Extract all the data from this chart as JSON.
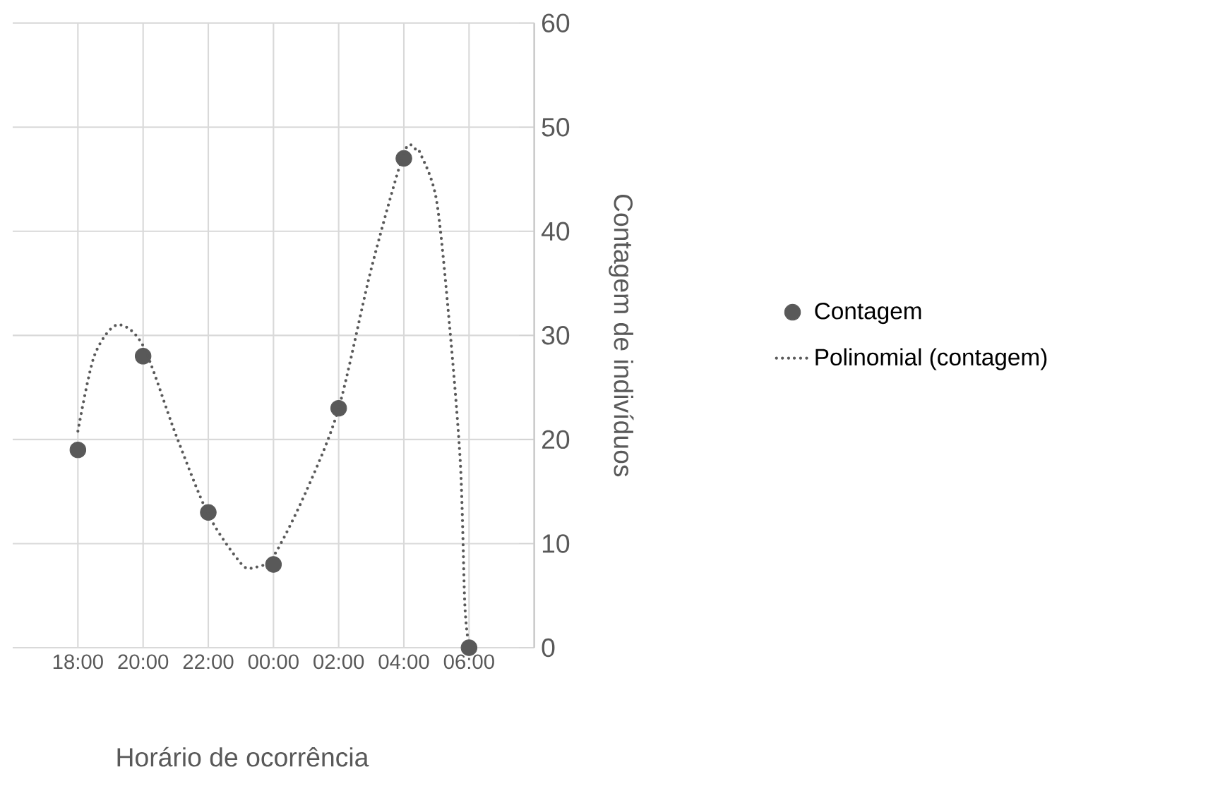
{
  "chart_data": {
    "type": "scatter",
    "xlabel": "Horário de ocorrência",
    "ylabel": "Contagem de indivíduos",
    "x": [
      "2000-01-01T18:00",
      "2000-01-01T20:00",
      "2000-01-01T22:00",
      "2000-01-02T00:00",
      "2000-01-02T02:00",
      "2000-01-02T04:00",
      "2000-01-02T06:00"
    ],
    "xlim": [
      "2000-01-01T16:00",
      "2000-01-02T08:00"
    ],
    "xticks": [
      {
        "value": "2000-01-01T18:00",
        "label": "18:00"
      },
      {
        "value": "2000-01-01T20:00",
        "label": "20:00"
      },
      {
        "value": "2000-01-01T22:00",
        "label": "22:00"
      },
      {
        "value": "2000-01-02T00:00",
        "label": "00:00"
      },
      {
        "value": "2000-01-02T02:00",
        "label": "02:00"
      },
      {
        "value": "2000-01-02T04:00",
        "label": "04:00"
      },
      {
        "value": "2000-01-02T06:00",
        "label": "06:00"
      }
    ],
    "ylim": [
      0,
      60
    ],
    "yticks": [
      0,
      10,
      20,
      30,
      40,
      50,
      60
    ],
    "grid": true,
    "legend": "right",
    "series": [
      {
        "name": "Contagem",
        "color": "#595959",
        "marker": "circle",
        "values": [
          19,
          28,
          13,
          8,
          23,
          47,
          0
        ]
      },
      {
        "name": "Polinomial (contagem)",
        "type": "line",
        "color": "#595959",
        "line_style": "dotted",
        "marker": "none",
        "x": [
          "2000-01-01T18:00",
          "2000-01-01T18:30",
          "2000-01-01T19:12",
          "2000-01-01T20:00",
          "2000-01-01T21:00",
          "2000-01-01T22:00",
          "2000-01-01T23:00",
          "2000-01-01T23:24",
          "2000-01-02T00:00",
          "2000-01-02T01:00",
          "2000-01-02T02:00",
          "2000-01-02T03:00",
          "2000-01-02T04:00",
          "2000-01-02T04:21",
          "2000-01-02T04:30",
          "2000-01-02T05:00",
          "2000-01-02T05:24",
          "2000-01-02T05:44",
          "2000-01-02T05:52",
          "2000-01-02T05:58"
        ],
        "values": [
          20.8,
          28,
          31,
          29,
          20.5,
          12.8,
          8.1,
          7.7,
          8.8,
          15,
          23,
          36.4,
          47.5,
          47.9,
          47.5,
          43,
          31,
          17.7,
          4.4,
          0.8
        ]
      }
    ]
  }
}
